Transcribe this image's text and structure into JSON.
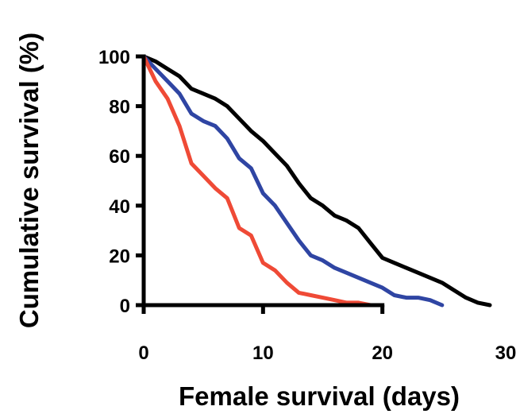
{
  "chart_data": {
    "type": "line",
    "title": "",
    "xlabel": "Female survival (days)",
    "ylabel": "Cumulative survival (%)",
    "xlim": [
      0,
      30
    ],
    "ylim": [
      0,
      100
    ],
    "xticks": [
      0,
      10,
      20,
      30
    ],
    "yticks": [
      0,
      20,
      40,
      60,
      80,
      100
    ],
    "grid": false,
    "legend": "none",
    "series": [
      {
        "color": "#000000",
        "x": [
          0,
          1,
          2,
          3,
          4,
          5,
          6,
          7,
          8,
          9,
          10,
          11,
          12,
          13,
          14,
          15,
          16,
          17,
          18,
          19,
          20,
          21,
          22,
          23,
          24,
          25,
          26,
          27,
          28,
          29
        ],
        "y": [
          100,
          98,
          95,
          92,
          87,
          85,
          83,
          80,
          75,
          70,
          66,
          61,
          56,
          49,
          43,
          40,
          36,
          34,
          31,
          25,
          19,
          17,
          15,
          13,
          11,
          9,
          6,
          3,
          1,
          0
        ]
      },
      {
        "color": "#2f45a3",
        "x": [
          0,
          1,
          2,
          3,
          4,
          5,
          6,
          7,
          8,
          9,
          10,
          11,
          12,
          13,
          14,
          15,
          16,
          17,
          18,
          19,
          20,
          21,
          22,
          23,
          24,
          25
        ],
        "y": [
          100,
          95,
          90,
          85,
          77,
          74,
          72,
          67,
          59,
          55,
          45,
          40,
          33,
          26,
          20,
          18,
          15,
          13,
          11,
          9,
          7,
          4,
          3,
          3,
          2,
          0
        ]
      },
      {
        "color": "#ef4a36",
        "x": [
          0,
          1,
          2,
          3,
          4,
          5,
          6,
          7,
          8,
          9,
          10,
          11,
          12,
          13,
          14,
          15,
          16,
          17,
          18,
          19
        ],
        "y": [
          100,
          90,
          83,
          72,
          57,
          52,
          47,
          43,
          31,
          28,
          17,
          14,
          9,
          5,
          4,
          3,
          2,
          1,
          1,
          0
        ]
      }
    ]
  }
}
